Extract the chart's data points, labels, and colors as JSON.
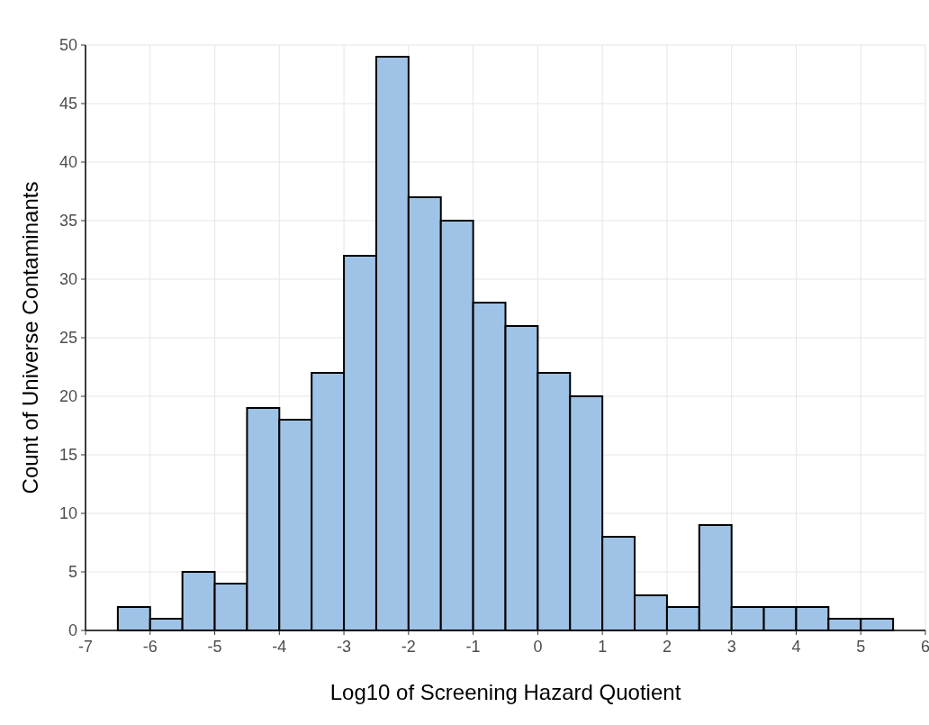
{
  "chart_data": {
    "type": "histogram",
    "xlabel": "Log10 of Screening Hazard Quotient",
    "ylabel": "Count of Universe Contaminants",
    "bins": [
      -6.5,
      -6,
      -5.5,
      -5,
      -4.5,
      -4,
      -3.5,
      -3,
      -2.5,
      -2,
      -1.5,
      -1,
      -0.5,
      0,
      0.5,
      1,
      1.5,
      2,
      2.5,
      3,
      3.5,
      4,
      4.5,
      5,
      5.5
    ],
    "values": [
      2,
      1,
      5,
      4,
      19,
      18,
      22,
      32,
      49,
      37,
      35,
      28,
      26,
      22,
      20,
      8,
      3,
      2,
      9,
      2,
      2,
      2,
      1,
      1
    ],
    "color": "#9fc3e6",
    "xlim": [
      -7,
      6
    ],
    "xticks": [
      -7,
      -6,
      -5,
      -4,
      -3,
      -2,
      -1,
      0,
      1,
      2,
      3,
      4,
      5,
      6
    ],
    "ylim": [
      0,
      50
    ],
    "yticks": [
      0,
      5,
      10,
      15,
      20,
      25,
      30,
      35,
      40,
      45,
      50
    ],
    "grid": true
  }
}
